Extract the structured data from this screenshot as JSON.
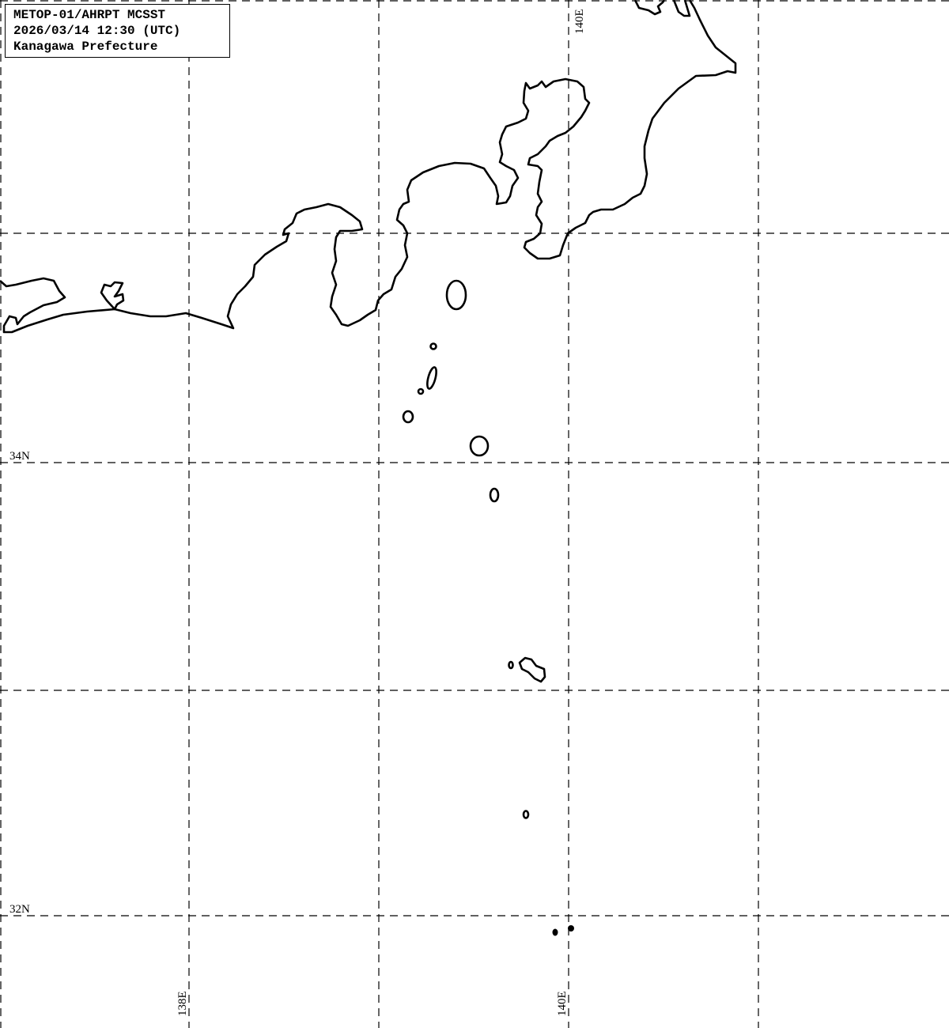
{
  "title": {
    "line1": "METOP-01/AHRPT MCSST",
    "line2": "2026/03/14 12:30 (UTC)",
    "line3": "Kanagawa Prefecture"
  },
  "grid": {
    "lat_labels": [
      "34N",
      "32N"
    ],
    "lon_labels_bottom": [
      "138E",
      "140E"
    ],
    "lon_label_top": "140E"
  },
  "colors": {
    "coastline": "#000000",
    "grid": "#000000",
    "background": "#ffffff"
  }
}
